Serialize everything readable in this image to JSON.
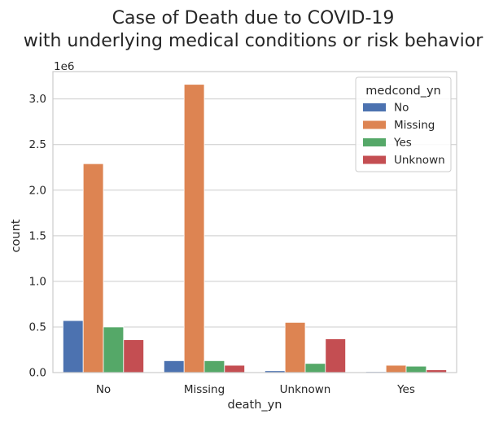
{
  "chart_data": {
    "type": "bar",
    "title_line1": "Case of Death due to COVID-19",
    "title_line2": "with underlying medical conditions or risk behavior",
    "xlabel": "death_yn",
    "ylabel": "count",
    "y_offset_label": "1e6",
    "ylim": [
      0,
      3.3
    ],
    "y_ticks": [
      0.0,
      0.5,
      1.0,
      1.5,
      2.0,
      2.5,
      3.0
    ],
    "y_tick_labels": [
      "0.0",
      "0.5",
      "1.0",
      "1.5",
      "2.0",
      "2.5",
      "3.0"
    ],
    "categories": [
      "No",
      "Missing",
      "Unknown",
      "Yes"
    ],
    "grid": true,
    "legend": {
      "title": "medcond_yn",
      "placement": "top-right"
    },
    "series": [
      {
        "name": "No",
        "color": "#4C72B0",
        "values": [
          0.57,
          0.13,
          0.02,
          0.01
        ]
      },
      {
        "name": "Missing",
        "color": "#DD8452",
        "values": [
          2.29,
          3.16,
          0.55,
          0.08
        ]
      },
      {
        "name": "Yes",
        "color": "#55A868",
        "values": [
          0.5,
          0.13,
          0.1,
          0.07
        ]
      },
      {
        "name": "Unknown",
        "color": "#C44E52",
        "values": [
          0.36,
          0.08,
          0.37,
          0.03
        ]
      }
    ]
  }
}
